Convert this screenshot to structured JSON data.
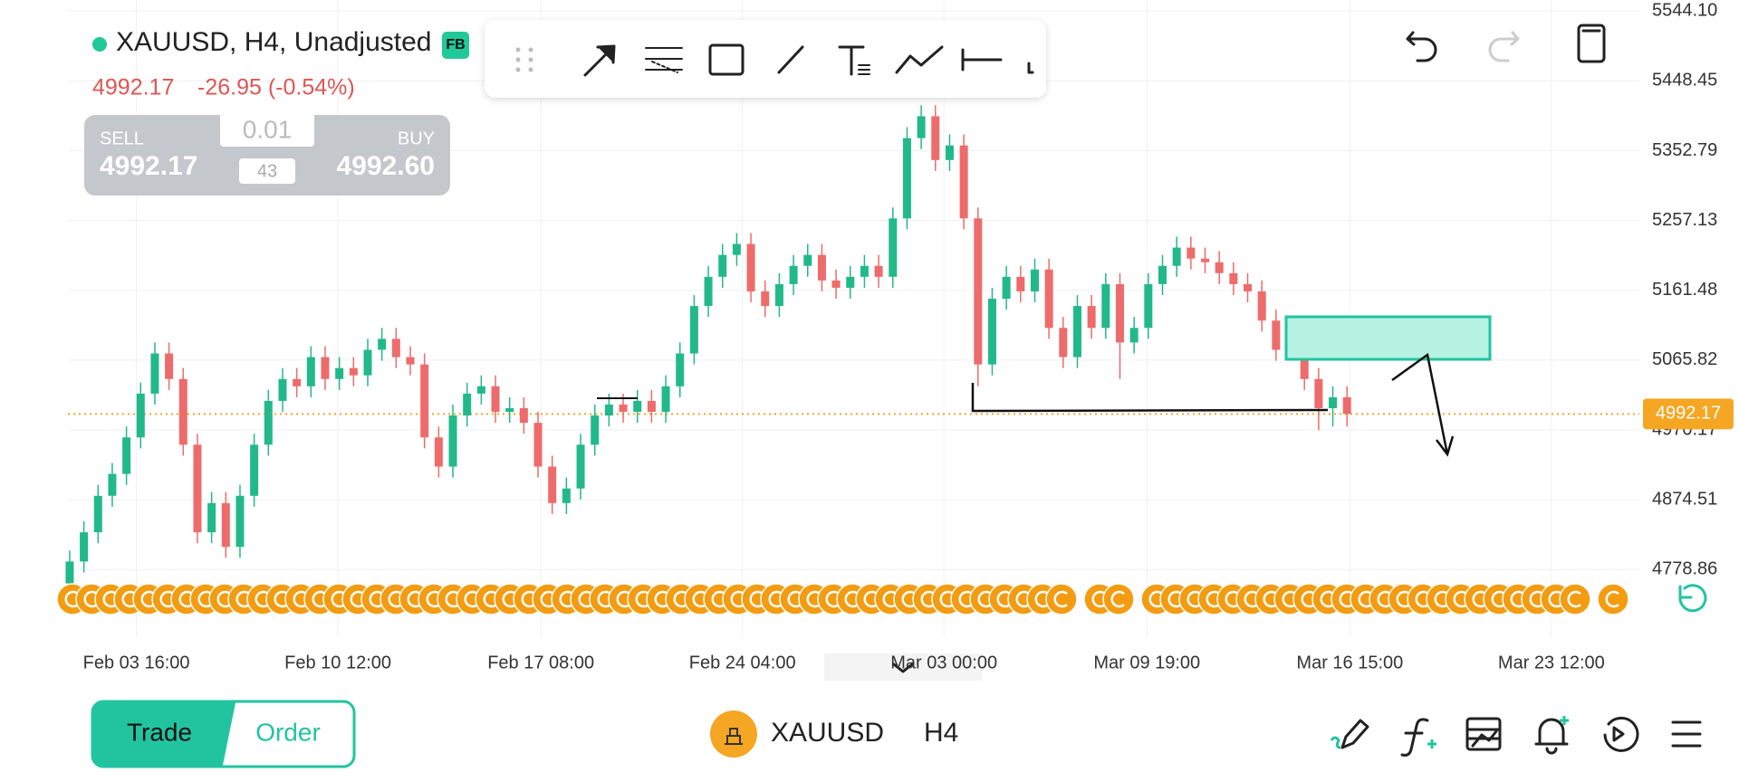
{
  "header": {
    "symbol_title": "XAUUSD, H4, Unadjusted",
    "badge": "FB",
    "price": "4992.17",
    "change": "-26.95 (-0.54%)"
  },
  "trade_panel": {
    "sell_label": "SELL",
    "sell_price": "4992.17",
    "buy_label": "BUY",
    "buy_price": "4992.60",
    "lot": "0.01",
    "spread": "43"
  },
  "chart_data": {
    "type": "candlestick",
    "open": [
      4760,
      4790,
      4830,
      4880,
      4910,
      4960,
      5020,
      5075,
      5040,
      4950,
      4830,
      4870,
      4810,
      4880,
      4950,
      5010,
      5040,
      5030,
      5070,
      5040,
      5055,
      5045,
      5080,
      5095,
      5070,
      5060,
      4960,
      4920,
      4990,
      5020,
      5030,
      4995,
      5000,
      4980,
      4920,
      4870,
      4890,
      4950,
      4990,
      5005,
      4995,
      5010,
      4995,
      5030,
      5075,
      5140,
      5180,
      5210,
      5225,
      5160,
      5140,
      5170,
      5195,
      5210,
      5175,
      5165,
      5180,
      5195,
      5180,
      5260,
      5370,
      5400,
      5340,
      5360,
      5260,
      5060,
      5150,
      5180,
      5160,
      5190,
      5110,
      5070,
      5140,
      5110,
      5170,
      5090,
      5110,
      5170,
      5195,
      5220,
      5205,
      5200,
      5185,
      5170,
      5160,
      5120,
      5080,
      5095,
      5040,
      5000,
      5015
    ],
    "high": [
      4805,
      4845,
      4895,
      4925,
      4975,
      5035,
      5090,
      5090,
      5055,
      4965,
      4885,
      4885,
      4895,
      4965,
      5025,
      5055,
      5055,
      5085,
      5085,
      5070,
      5070,
      5095,
      5110,
      5110,
      5085,
      5075,
      4975,
      5005,
      5035,
      5045,
      5045,
      5015,
      5015,
      4995,
      4935,
      4905,
      4965,
      5005,
      5020,
      5020,
      5025,
      5025,
      5045,
      5090,
      5155,
      5195,
      5225,
      5240,
      5240,
      5175,
      5185,
      5210,
      5225,
      5225,
      5190,
      5195,
      5210,
      5210,
      5275,
      5385,
      5415,
      5415,
      5375,
      5375,
      5275,
      5165,
      5195,
      5195,
      5205,
      5205,
      5125,
      5155,
      5155,
      5185,
      5185,
      5125,
      5185,
      5210,
      5235,
      5235,
      5220,
      5215,
      5200,
      5185,
      5175,
      5135,
      5110,
      5110,
      5055,
      5030,
      5030
    ],
    "low": [
      4745,
      4775,
      4815,
      4865,
      4895,
      4945,
      5005,
      5025,
      4935,
      4815,
      4815,
      4795,
      4795,
      4865,
      4935,
      4995,
      5015,
      5015,
      5025,
      5025,
      5030,
      5030,
      5065,
      5055,
      5045,
      4945,
      4905,
      4905,
      4975,
      5005,
      4980,
      4980,
      4965,
      4905,
      4855,
      4855,
      4875,
      4935,
      4975,
      4980,
      4980,
      4980,
      4980,
      5015,
      5060,
      5125,
      5165,
      5195,
      5145,
      5125,
      5125,
      5155,
      5180,
      5160,
      5150,
      5150,
      5165,
      5165,
      5165,
      5245,
      5355,
      5325,
      5325,
      5245,
      5030,
      5045,
      5135,
      5145,
      5145,
      5095,
      5055,
      5055,
      5095,
      5095,
      5040,
      5075,
      5095,
      5155,
      5180,
      5190,
      5185,
      5170,
      5155,
      5145,
      5105,
      5065,
      5065,
      5025,
      4970,
      4975,
      4975
    ],
    "close": [
      4790,
      4830,
      4880,
      4910,
      4960,
      5020,
      5075,
      5040,
      4950,
      4830,
      4870,
      4810,
      4880,
      4950,
      5010,
      5040,
      5030,
      5070,
      5040,
      5055,
      5045,
      5080,
      5095,
      5070,
      5060,
      4960,
      4920,
      4990,
      5020,
      5030,
      4995,
      5000,
      4980,
      4920,
      4870,
      4890,
      4950,
      4990,
      5005,
      4995,
      5010,
      4995,
      5030,
      5075,
      5140,
      5180,
      5210,
      5225,
      5160,
      5140,
      5170,
      5195,
      5210,
      5175,
      5165,
      5180,
      5195,
      5180,
      5260,
      5370,
      5400,
      5340,
      5360,
      5260,
      5060,
      5150,
      5180,
      5160,
      5190,
      5110,
      5070,
      5140,
      5110,
      5170,
      5090,
      5110,
      5170,
      5195,
      5220,
      5205,
      5200,
      5185,
      5170,
      5160,
      5120,
      5080,
      5095,
      5040,
      5000,
      5015,
      4992.17
    ],
    "colors": {
      "up": "#22b98a",
      "down": "#ee6b6b",
      "last": "#f5a623"
    },
    "xlim": [
      -4.91,
      110.6
    ],
    "xticks": [
      {
        "value": 4.7,
        "label": "Feb 03 16:00"
      },
      {
        "value": 18.9,
        "label": "Feb 10 12:00"
      },
      {
        "value": 33.2,
        "label": "Feb 17 08:00"
      },
      {
        "value": 47.4,
        "label": "Feb 24 04:00"
      },
      {
        "value": 61.6,
        "label": "Mar 03 00:00"
      },
      {
        "value": 75.9,
        "label": "Mar 09 19:00"
      },
      {
        "value": 90.2,
        "label": "Mar 16 15:00"
      },
      {
        "value": 104.4,
        "label": "Mar 23 12:00"
      }
    ],
    "ylim": [
      4686.3,
      5559.2
    ],
    "yticks": [
      {
        "value": 5544.1,
        "label": "5544.10"
      },
      5448.45,
      5352.79,
      5257.13,
      5161.48,
      5065.82,
      4970.17,
      4874.51,
      4778.86
    ],
    "last_price": 4992.17
  },
  "bottom_bar": {
    "trade": "Trade",
    "order": "Order",
    "symbol": "XAUUSD",
    "timeframe": "H4"
  }
}
